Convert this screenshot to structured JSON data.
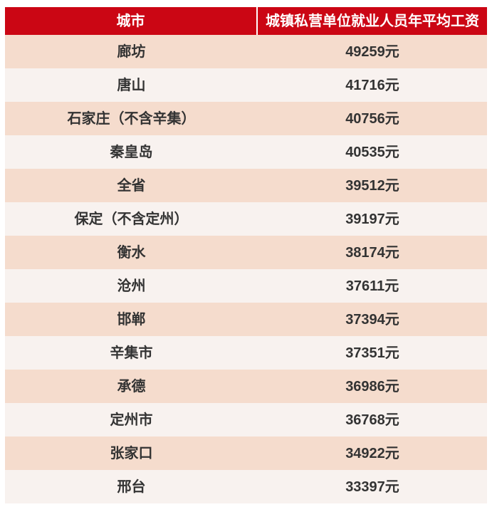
{
  "colors": {
    "header_bg": "#cb0614",
    "header_text": "#ffffff",
    "row_pink": "#f5dccd",
    "row_light": "#f8f2ef",
    "cell_text": "#333333",
    "page_bg": "#ffffff"
  },
  "table": {
    "headers": {
      "city": "城市",
      "salary": "城镇私营单位就业人员年平均工资"
    },
    "rows": [
      {
        "city": "廊坊",
        "salary": "49259元"
      },
      {
        "city": "唐山",
        "salary": "41716元"
      },
      {
        "city": "石家庄（不含辛集）",
        "salary": "40756元"
      },
      {
        "city": "秦皇岛",
        "salary": "40535元"
      },
      {
        "city": "全省",
        "salary": "39512元"
      },
      {
        "city": "保定（不含定州）",
        "salary": "39197元"
      },
      {
        "city": "衡水",
        "salary": "38174元"
      },
      {
        "city": "沧州",
        "salary": "37611元"
      },
      {
        "city": "邯郸",
        "salary": "37394元"
      },
      {
        "city": "辛集市",
        "salary": "37351元"
      },
      {
        "city": "承德",
        "salary": "36986元"
      },
      {
        "city": "定州市",
        "salary": "36768元"
      },
      {
        "city": "张家口",
        "salary": "34922元"
      },
      {
        "city": "邢台",
        "salary": "33397元"
      }
    ]
  },
  "chart_data": {
    "type": "table",
    "columns": [
      "城市",
      "城镇私营单位就业人员年平均工资"
    ],
    "rows": [
      [
        "廊坊",
        49259
      ],
      [
        "唐山",
        41716
      ],
      [
        "石家庄（不含辛集）",
        40756
      ],
      [
        "秦皇岛",
        40535
      ],
      [
        "全省",
        39512
      ],
      [
        "保定（不含定州）",
        39197
      ],
      [
        "衡水",
        38174
      ],
      [
        "沧州",
        37611
      ],
      [
        "邯郸",
        37394
      ],
      [
        "辛集市",
        37351
      ],
      [
        "承德",
        36986
      ],
      [
        "定州市",
        36768
      ],
      [
        "张家口",
        34922
      ],
      [
        "邢台",
        33397
      ]
    ],
    "unit": "元"
  }
}
